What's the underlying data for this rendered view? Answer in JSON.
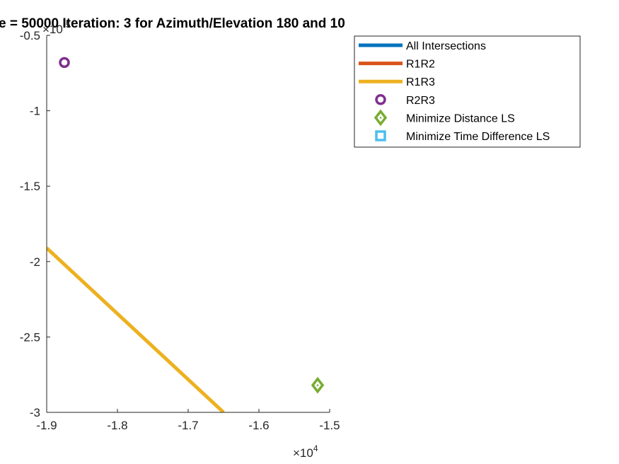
{
  "chart_data": {
    "type": "line",
    "title": "e = 50000 Iteration: 3 for Azimuth/Elevation 180 and 10",
    "xlabel": "",
    "ylabel": "",
    "xlim": [
      -19000,
      -15000
    ],
    "ylim": [
      -3e-05,
      -5e-06
    ],
    "x_exponent": {
      "base": "×10",
      "power": "4"
    },
    "y_exponent": {
      "base": "×10",
      "power": "-5"
    },
    "x_ticks": [
      -19000,
      -18000,
      -17000,
      -16000,
      -15000
    ],
    "x_tick_labels": [
      "-1.9",
      "-1.8",
      "-1.7",
      "-1.6",
      "-1.5"
    ],
    "y_ticks": [
      -5e-06,
      -1e-05,
      -1.5e-05,
      -2e-05,
      -2.5e-05,
      -3e-05
    ],
    "y_tick_labels": [
      "-0.5",
      "-1",
      "-1.5",
      "-2",
      "-2.5",
      "-3"
    ],
    "grid": false,
    "legend_position": "top-right",
    "series": [
      {
        "name": "All Intersections",
        "kind": "line",
        "color": "#0072BD",
        "points": []
      },
      {
        "name": "R1R2",
        "kind": "line",
        "color": "#D95319",
        "points": []
      },
      {
        "name": "R1R3",
        "kind": "line",
        "color": "#EDB120",
        "points": [
          [
            -19000,
            -1.91e-05
          ],
          [
            -16500,
            -3e-05
          ]
        ]
      },
      {
        "name": "R2R3",
        "kind": "ring-marker",
        "color": "#7E2F8E",
        "points": [
          [
            -18750,
            -6.8e-06
          ]
        ]
      },
      {
        "name": "Minimize Distance LS",
        "kind": "diamond-marker",
        "color": "#77AC30",
        "points": [
          [
            -15170,
            -2.82e-05
          ]
        ]
      },
      {
        "name": "Minimize Time Difference LS",
        "kind": "square-marker",
        "color": "#4DBEEE",
        "points": []
      }
    ]
  }
}
